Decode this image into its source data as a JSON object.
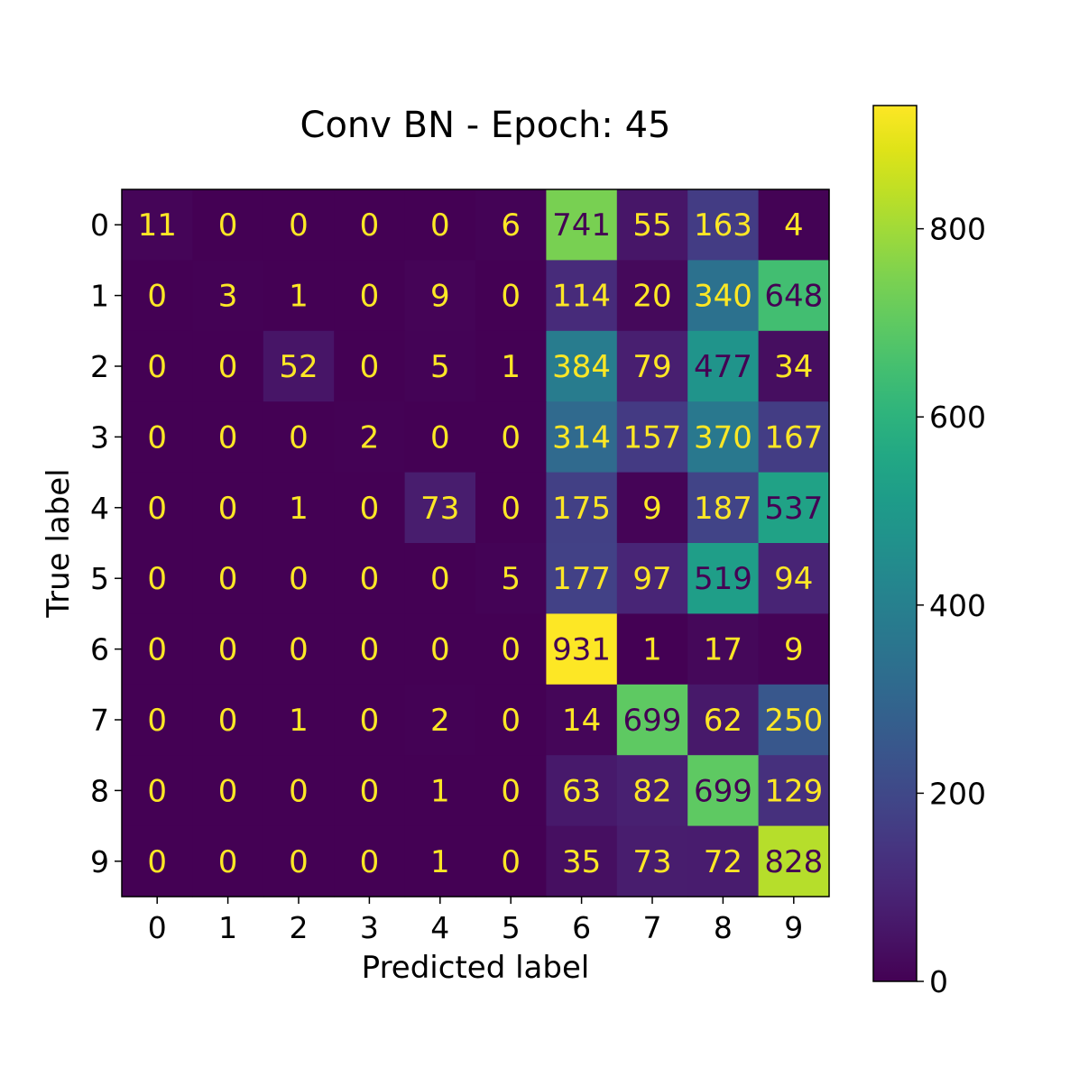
{
  "chart_data": {
    "type": "heatmap",
    "title": "Conv BN - Epoch: 45",
    "xlabel": "Predicted label",
    "ylabel": "True label",
    "x_ticks": [
      "0",
      "1",
      "2",
      "3",
      "4",
      "5",
      "6",
      "7",
      "8",
      "9"
    ],
    "y_ticks": [
      "0",
      "1",
      "2",
      "3",
      "4",
      "5",
      "6",
      "7",
      "8",
      "9"
    ],
    "matrix": [
      [
        11,
        0,
        0,
        0,
        0,
        6,
        741,
        55,
        163,
        4
      ],
      [
        0,
        3,
        1,
        0,
        9,
        0,
        114,
        20,
        340,
        648
      ],
      [
        0,
        0,
        52,
        0,
        5,
        1,
        384,
        79,
        477,
        34
      ],
      [
        0,
        0,
        0,
        2,
        0,
        0,
        314,
        157,
        370,
        167
      ],
      [
        0,
        0,
        1,
        0,
        73,
        0,
        175,
        9,
        187,
        537
      ],
      [
        0,
        0,
        0,
        0,
        0,
        5,
        177,
        97,
        519,
        94
      ],
      [
        0,
        0,
        0,
        0,
        0,
        0,
        931,
        1,
        17,
        9
      ],
      [
        0,
        0,
        1,
        0,
        2,
        0,
        14,
        699,
        62,
        250
      ],
      [
        0,
        0,
        0,
        0,
        1,
        0,
        63,
        82,
        699,
        129
      ],
      [
        0,
        0,
        0,
        0,
        1,
        0,
        35,
        73,
        72,
        828
      ]
    ],
    "colormap": "viridis",
    "vmin": 0,
    "vmax": 931,
    "colorbar_ticks": [
      0,
      200,
      400,
      600,
      800
    ],
    "text_color_light": "#fde725",
    "text_color_dark": "#440154"
  }
}
